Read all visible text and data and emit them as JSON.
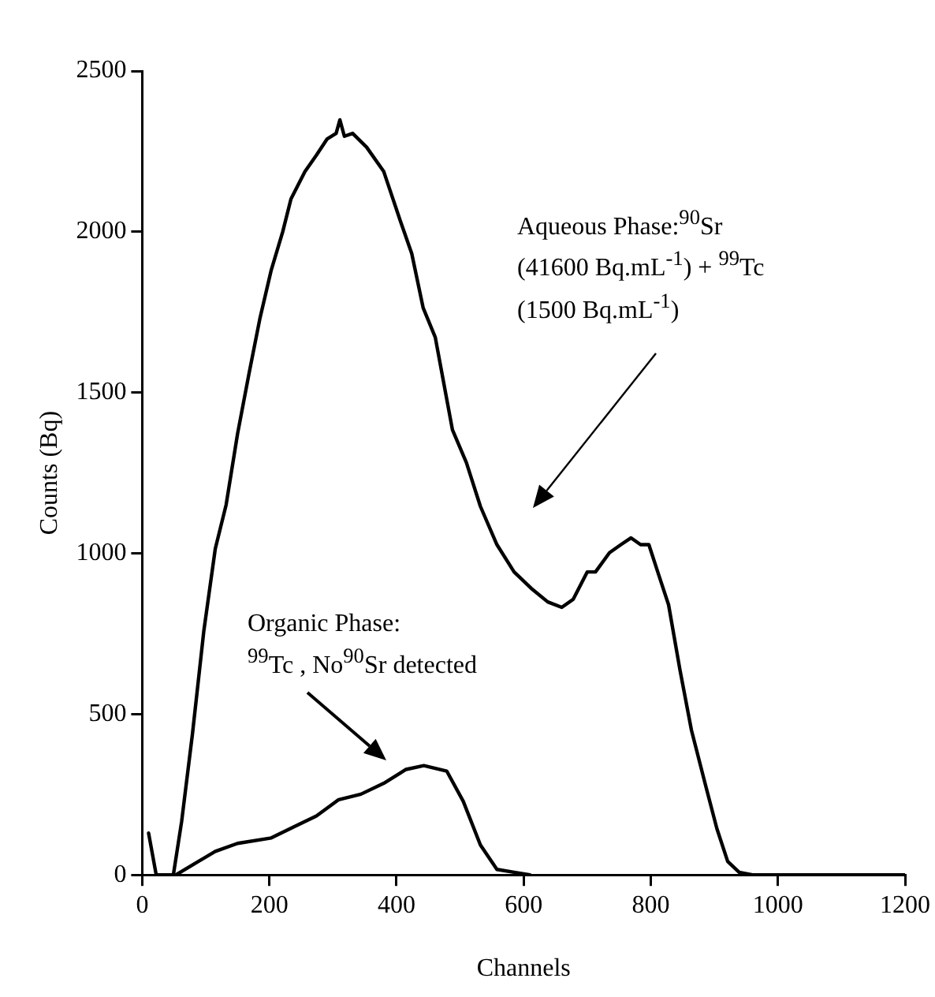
{
  "chart_data": {
    "type": "line",
    "xlabel": "Channels",
    "ylabel": "Counts (Bq)",
    "xlim": [
      0,
      1200
    ],
    "xticks": [
      0,
      200,
      400,
      600,
      800,
      1000,
      1200
    ],
    "ylim": [
      0,
      2500
    ],
    "yticks": [
      0,
      500,
      1000,
      1500,
      2000,
      2500
    ],
    "grid": false,
    "legend": false,
    "marker": "none",
    "line_style": "solid",
    "series": [
      {
        "color": "#000000",
        "x": [
          10,
          22,
          49,
          62,
          79,
          97,
          115,
          132,
          150,
          168,
          185,
          203,
          221,
          234,
          256,
          274,
          291,
          305,
          311,
          318,
          331,
          353,
          380,
          406,
          424,
          442,
          461,
          488,
          510,
          532,
          558,
          585,
          612,
          638,
          660,
          678,
          700,
          713,
          735,
          753,
          769,
          784,
          797,
          811,
          828,
          846,
          864,
          886,
          904,
          921,
          939,
          960,
          1200
        ],
        "values": [
          130,
          0,
          0,
          166,
          438,
          760,
          1015,
          1151,
          1372,
          1559,
          1729,
          1881,
          2000,
          2102,
          2187,
          2238,
          2289,
          2306,
          2348,
          2297,
          2306,
          2263,
          2187,
          2034,
          1932,
          1763,
          1672,
          1384,
          1282,
          1146,
          1027,
          942,
          891,
          849,
          832,
          857,
          942,
          942,
          1002,
          1027,
          1048,
          1027,
          1027,
          942,
          840,
          637,
          450,
          280,
          144,
          42,
          8,
          0,
          0
        ]
      },
      {
        "color": "#000000",
        "x": [
          53,
          79,
          115,
          150,
          203,
          238,
          274,
          309,
          344,
          380,
          415,
          443,
          479,
          505,
          532,
          558,
          585,
          610
        ],
        "values": [
          0,
          31,
          73,
          98,
          115,
          149,
          183,
          234,
          251,
          285,
          328,
          340,
          323,
          229,
          93,
          17,
          8,
          0
        ]
      }
    ],
    "annotations": [
      "Aqueous Phase:$^{90}$Sr\n(41600 Bq.mL$^{-1}$) + $^{99}$Tc\n(1500 Bq.mL$^{-1}$)",
      "Organic Phase:\n$^{99}$Tc , No$^{90}$Sr detected"
    ]
  }
}
